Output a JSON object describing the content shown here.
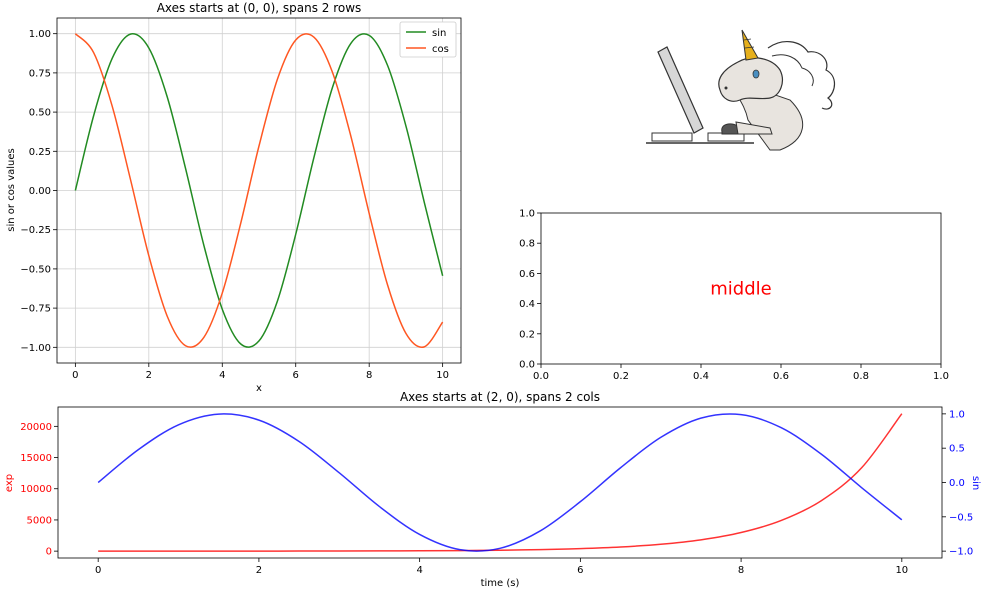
{
  "chart_data": [
    {
      "type": "line",
      "title": "Axes starts at (0, 0), spans 2 rows",
      "xlabel": "x",
      "ylabel": "sin or cos values",
      "xlim": [
        -0.5,
        10.5
      ],
      "ylim": [
        -1.1,
        1.1
      ],
      "x_ticks": [
        0,
        2,
        4,
        6,
        8,
        10
      ],
      "y_ticks": [
        1.0,
        0.75,
        0.5,
        0.25,
        0.0,
        -0.25,
        -0.5,
        -0.75,
        -1.0
      ],
      "x_tick_labels": [
        "0",
        "2",
        "4",
        "6",
        "8",
        "10"
      ],
      "y_tick_labels": [
        "1.00",
        "0.75",
        "0.50",
        "0.25",
        "0.00",
        "−0.25",
        "−0.50",
        "−0.75",
        "−1.00"
      ],
      "grid": true,
      "legend_position": "top-right",
      "x": [
        0,
        0.5,
        1,
        1.5,
        2,
        2.5,
        3,
        3.5,
        4,
        4.5,
        5,
        5.5,
        6,
        6.5,
        7,
        7.5,
        8,
        8.5,
        9,
        9.5,
        10
      ],
      "series": [
        {
          "name": "sin",
          "color": "#228b22",
          "values": [
            0.0,
            0.479,
            0.841,
            0.997,
            0.909,
            0.598,
            0.141,
            -0.351,
            -0.757,
            -0.978,
            -0.959,
            -0.706,
            -0.279,
            0.215,
            0.657,
            0.938,
            0.989,
            0.798,
            0.412,
            -0.075,
            -0.544
          ]
        },
        {
          "name": "cos",
          "color": "#ff5722",
          "values": [
            1.0,
            0.878,
            0.54,
            0.071,
            -0.416,
            -0.801,
            -0.99,
            -0.936,
            -0.654,
            -0.211,
            0.284,
            0.709,
            0.96,
            0.977,
            0.754,
            0.347,
            -0.146,
            -0.602,
            -0.911,
            -0.997,
            -0.839
          ]
        }
      ]
    },
    {
      "type": "scatter",
      "title": "",
      "xlim": [
        0,
        1
      ],
      "ylim": [
        0,
        1
      ],
      "x_ticks": [
        0.0,
        0.2,
        0.4,
        0.6,
        0.8,
        1.0
      ],
      "y_ticks": [
        0.0,
        0.2,
        0.4,
        0.6,
        0.8,
        1.0
      ],
      "x_tick_labels": [
        "0.0",
        "0.2",
        "0.4",
        "0.6",
        "0.8",
        "1.0"
      ],
      "y_tick_labels": [
        "0.0",
        "0.2",
        "0.4",
        "0.6",
        "0.8",
        "1.0"
      ],
      "annotation": {
        "text": "middle",
        "x": 0.5,
        "y": 0.5,
        "color": "#ff0000"
      },
      "series": []
    },
    {
      "type": "line",
      "title": "Axes starts at (2, 0), spans 2 cols",
      "xlabel": "time (s)",
      "ylabel_left": "exp",
      "ylabel_right": "sin",
      "xlim": [
        -0.5,
        10.5
      ],
      "ylim_left": [
        -1100,
        23100
      ],
      "ylim_right": [
        -1.1,
        1.1
      ],
      "x_ticks": [
        0,
        2,
        4,
        6,
        8,
        10
      ],
      "x_tick_labels": [
        "0",
        "2",
        "4",
        "6",
        "8",
        "10"
      ],
      "y_left_ticks": [
        0,
        5000,
        10000,
        15000,
        20000
      ],
      "y_left_tick_labels": [
        "0",
        "5000",
        "10000",
        "15000",
        "20000"
      ],
      "y_right_ticks": [
        1.0,
        0.5,
        0.0,
        -0.5,
        -1.0
      ],
      "y_right_tick_labels": [
        "1.0",
        "0.5",
        "0.0",
        "−0.5",
        "−1.0"
      ],
      "grid": false,
      "x": [
        0,
        0.5,
        1,
        1.5,
        2,
        2.5,
        3,
        3.5,
        4,
        4.5,
        5,
        5.5,
        6,
        6.5,
        7,
        7.5,
        8,
        8.5,
        9,
        9.5,
        10
      ],
      "series": [
        {
          "name": "exp",
          "axis": "left",
          "color": "#ff0000",
          "values": [
            1,
            1.6,
            2.7,
            4.5,
            7.4,
            12.2,
            20.1,
            33.1,
            54.6,
            90.0,
            148.4,
            244.7,
            403.4,
            665.1,
            1096.6,
            1808.0,
            2981.0,
            4914.8,
            8103.1,
            13359.7,
            22026.5
          ]
        },
        {
          "name": "sin",
          "axis": "right",
          "color": "#0000ff",
          "values": [
            0.0,
            0.479,
            0.841,
            0.997,
            0.909,
            0.598,
            0.141,
            -0.351,
            -0.757,
            -0.978,
            -0.959,
            -0.706,
            -0.279,
            0.215,
            0.657,
            0.938,
            0.989,
            0.798,
            0.412,
            -0.075,
            -0.544
          ]
        }
      ]
    }
  ]
}
